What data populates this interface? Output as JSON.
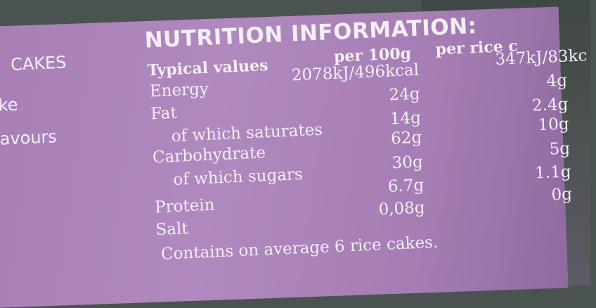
{
  "left_fragments": [
    "CAKES",
    "ke",
    "avours"
  ],
  "title": "NUTRITION INFORMATION:",
  "header": {
    "label": "Typical values",
    "col1": "per 100g",
    "col2": "per rice c"
  },
  "rows": [
    {
      "name": "Energy",
      "per_100g": "2078kJ/496kcal",
      "per_cake": "347kJ/83kc"
    },
    {
      "name": "Fat",
      "per_100g": "24g",
      "per_cake": "4g"
    },
    {
      "name": "of which saturates",
      "per_100g": "14g",
      "per_cake": "2.4g"
    },
    {
      "name": "Carbohydrate",
      "per_100g": "62g",
      "per_cake": "10g"
    },
    {
      "name": "of which sugars",
      "per_100g": "30g",
      "per_cake": "5g"
    },
    {
      "name": "Protein",
      "per_100g": "6.7g",
      "per_cake": "1.1g"
    },
    {
      "name": "Salt",
      "per_100g": "0,08g",
      "per_cake": "0g"
    }
  ],
  "footer": "Contains on average 6 rice cakes."
}
